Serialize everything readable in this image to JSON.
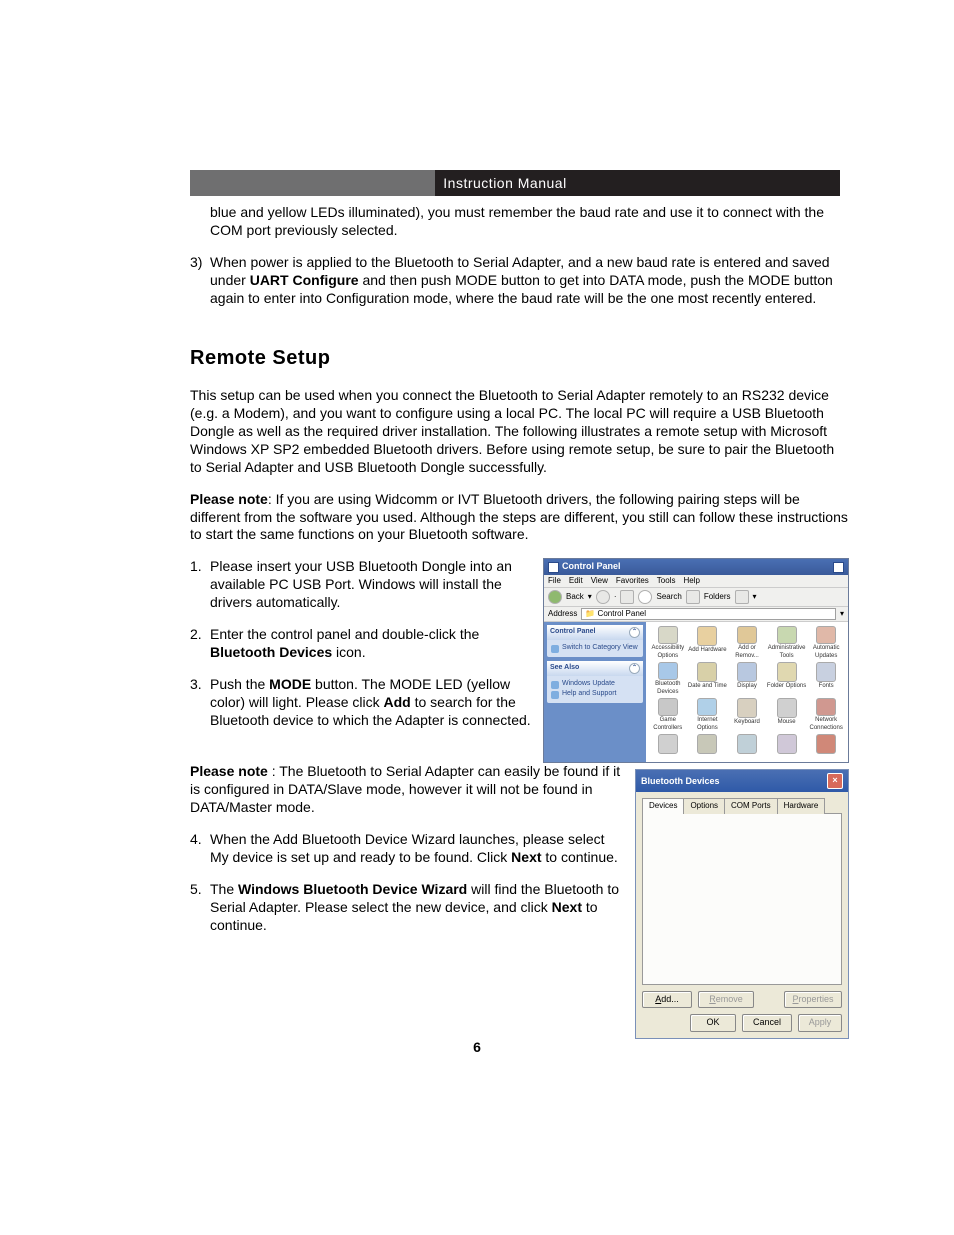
{
  "banner": {
    "title": "Instruction Manual"
  },
  "intro": {
    "line1": "blue and yellow LEDs illuminated), you must remember the baud rate and use it to connect with the COM port previously selected.",
    "item3_pre": "When power is applied to the Bluetooth to Serial Adapter, and a new baud rate is entered and saved under ",
    "item3_bold": "UART Configure",
    "item3_post": " and then push MODE button to get into DATA mode, push the MODE button again to enter into Configuration mode, where the baud rate will be the one most recently entered.",
    "item3_num": "3)"
  },
  "section_title": "Remote Setup",
  "remote": {
    "p1": "This setup can be used when you connect the Bluetooth to Serial Adapter remotely to an RS232 device (e.g. a Modem), and you want to configure using a local PC.  The local PC will require a USB Bluetooth Dongle as well as the required driver installation. The following illustrates a remote setup with Microsoft Windows XP SP2 embedded Bluetooth drivers.  Before using remote setup, be sure to pair the Bluetooth to Serial Adapter and USB Bluetooth Dongle successfully.",
    "p2_bold": "Please note",
    "p2_rest": ": If you are using Widcomm or IVT Bluetooth drivers, the following pairing steps will be different from the software you used. Although the steps are different, you still can follow these instructions to start the same functions on your Bluetooth software.",
    "li1_n": "1.",
    "li1": "Please insert your USB Bluetooth Dongle into an available PC USB Port.  Windows will install the drivers automatically.",
    "li2_n": "2.",
    "li2_a": "Enter the control panel and double-click the ",
    "li2_b": "Bluetooth Devices",
    "li2_c": " icon.",
    "li3_n": "3.",
    "li3_a": "Push the ",
    "li3_b": "MODE",
    "li3_c": " button.  The MODE LED (yellow color) will light.  Please click ",
    "li3_d": "Add",
    "li3_e": " to search for the Bluetooth device to which the Adapter is connected.",
    "note2_bold": "Please note",
    "note2_rest": " :  The Bluetooth to Serial Adapter can easily be found if it is configured in DATA/Slave mode, however it will not be found in DATA/Master mode.",
    "li4_n": "4.",
    "li4_a": "When the Add Bluetooth Device Wizard launches, please select My device is set up and ready to be found.   Click ",
    "li4_b": "Next",
    "li4_c": " to continue.",
    "li5_n": "5.",
    "li5_a": "The ",
    "li5_b": "Windows Bluetooth Device Wizard",
    "li5_c": " will find the Bluetooth to Serial Adapter.  Please select the new device, and click ",
    "li5_d": "Next",
    "li5_e": " to continue."
  },
  "page_number": "6",
  "cp": {
    "title": "Control Panel",
    "menu": [
      "File",
      "Edit",
      "View",
      "Favorites",
      "Tools",
      "Help"
    ],
    "back": "Back",
    "search": "Search",
    "folders": "Folders",
    "address_label": "Address",
    "address_value": "Control Panel",
    "panel1_title": "Control Panel",
    "panel1_link": "Switch to Category View",
    "panel2_title": "See Also",
    "panel2_links": [
      "Windows Update",
      "Help and Support"
    ],
    "items": [
      "Accessibility Options",
      "Add Hardware",
      "Add or Remov...",
      "Administrative Tools",
      "Automatic Updates",
      "Bluetooth Devices",
      "Date and Time",
      "Display",
      "Folder Options",
      "Fonts",
      "Game Controllers",
      "Internet Options",
      "Keyboard",
      "Mouse",
      "Network Connections",
      "",
      "",
      "",
      "",
      ""
    ],
    "icon_colors": [
      "#d8d8c8",
      "#e8d0a0",
      "#e0c898",
      "#c8d8b0",
      "#e0b8a8",
      "#a8c8e8",
      "#d8d0a8",
      "#b8c8e0",
      "#e0d8b0",
      "#c8d0e0",
      "#c8c8c8",
      "#b0d0e8",
      "#d8d0c0",
      "#d0d0d0",
      "#d09890",
      "#d0d0d0",
      "#c8c8b8",
      "#c0d0d8",
      "#d0c8d8",
      "#d08878"
    ]
  },
  "bt": {
    "title": "Bluetooth Devices",
    "tabs": [
      "Devices",
      "Options",
      "COM Ports",
      "Hardware"
    ],
    "add": "Add...",
    "remove": "Remove",
    "properties": "Properties",
    "ok": "OK",
    "cancel": "Cancel",
    "apply": "Apply"
  }
}
